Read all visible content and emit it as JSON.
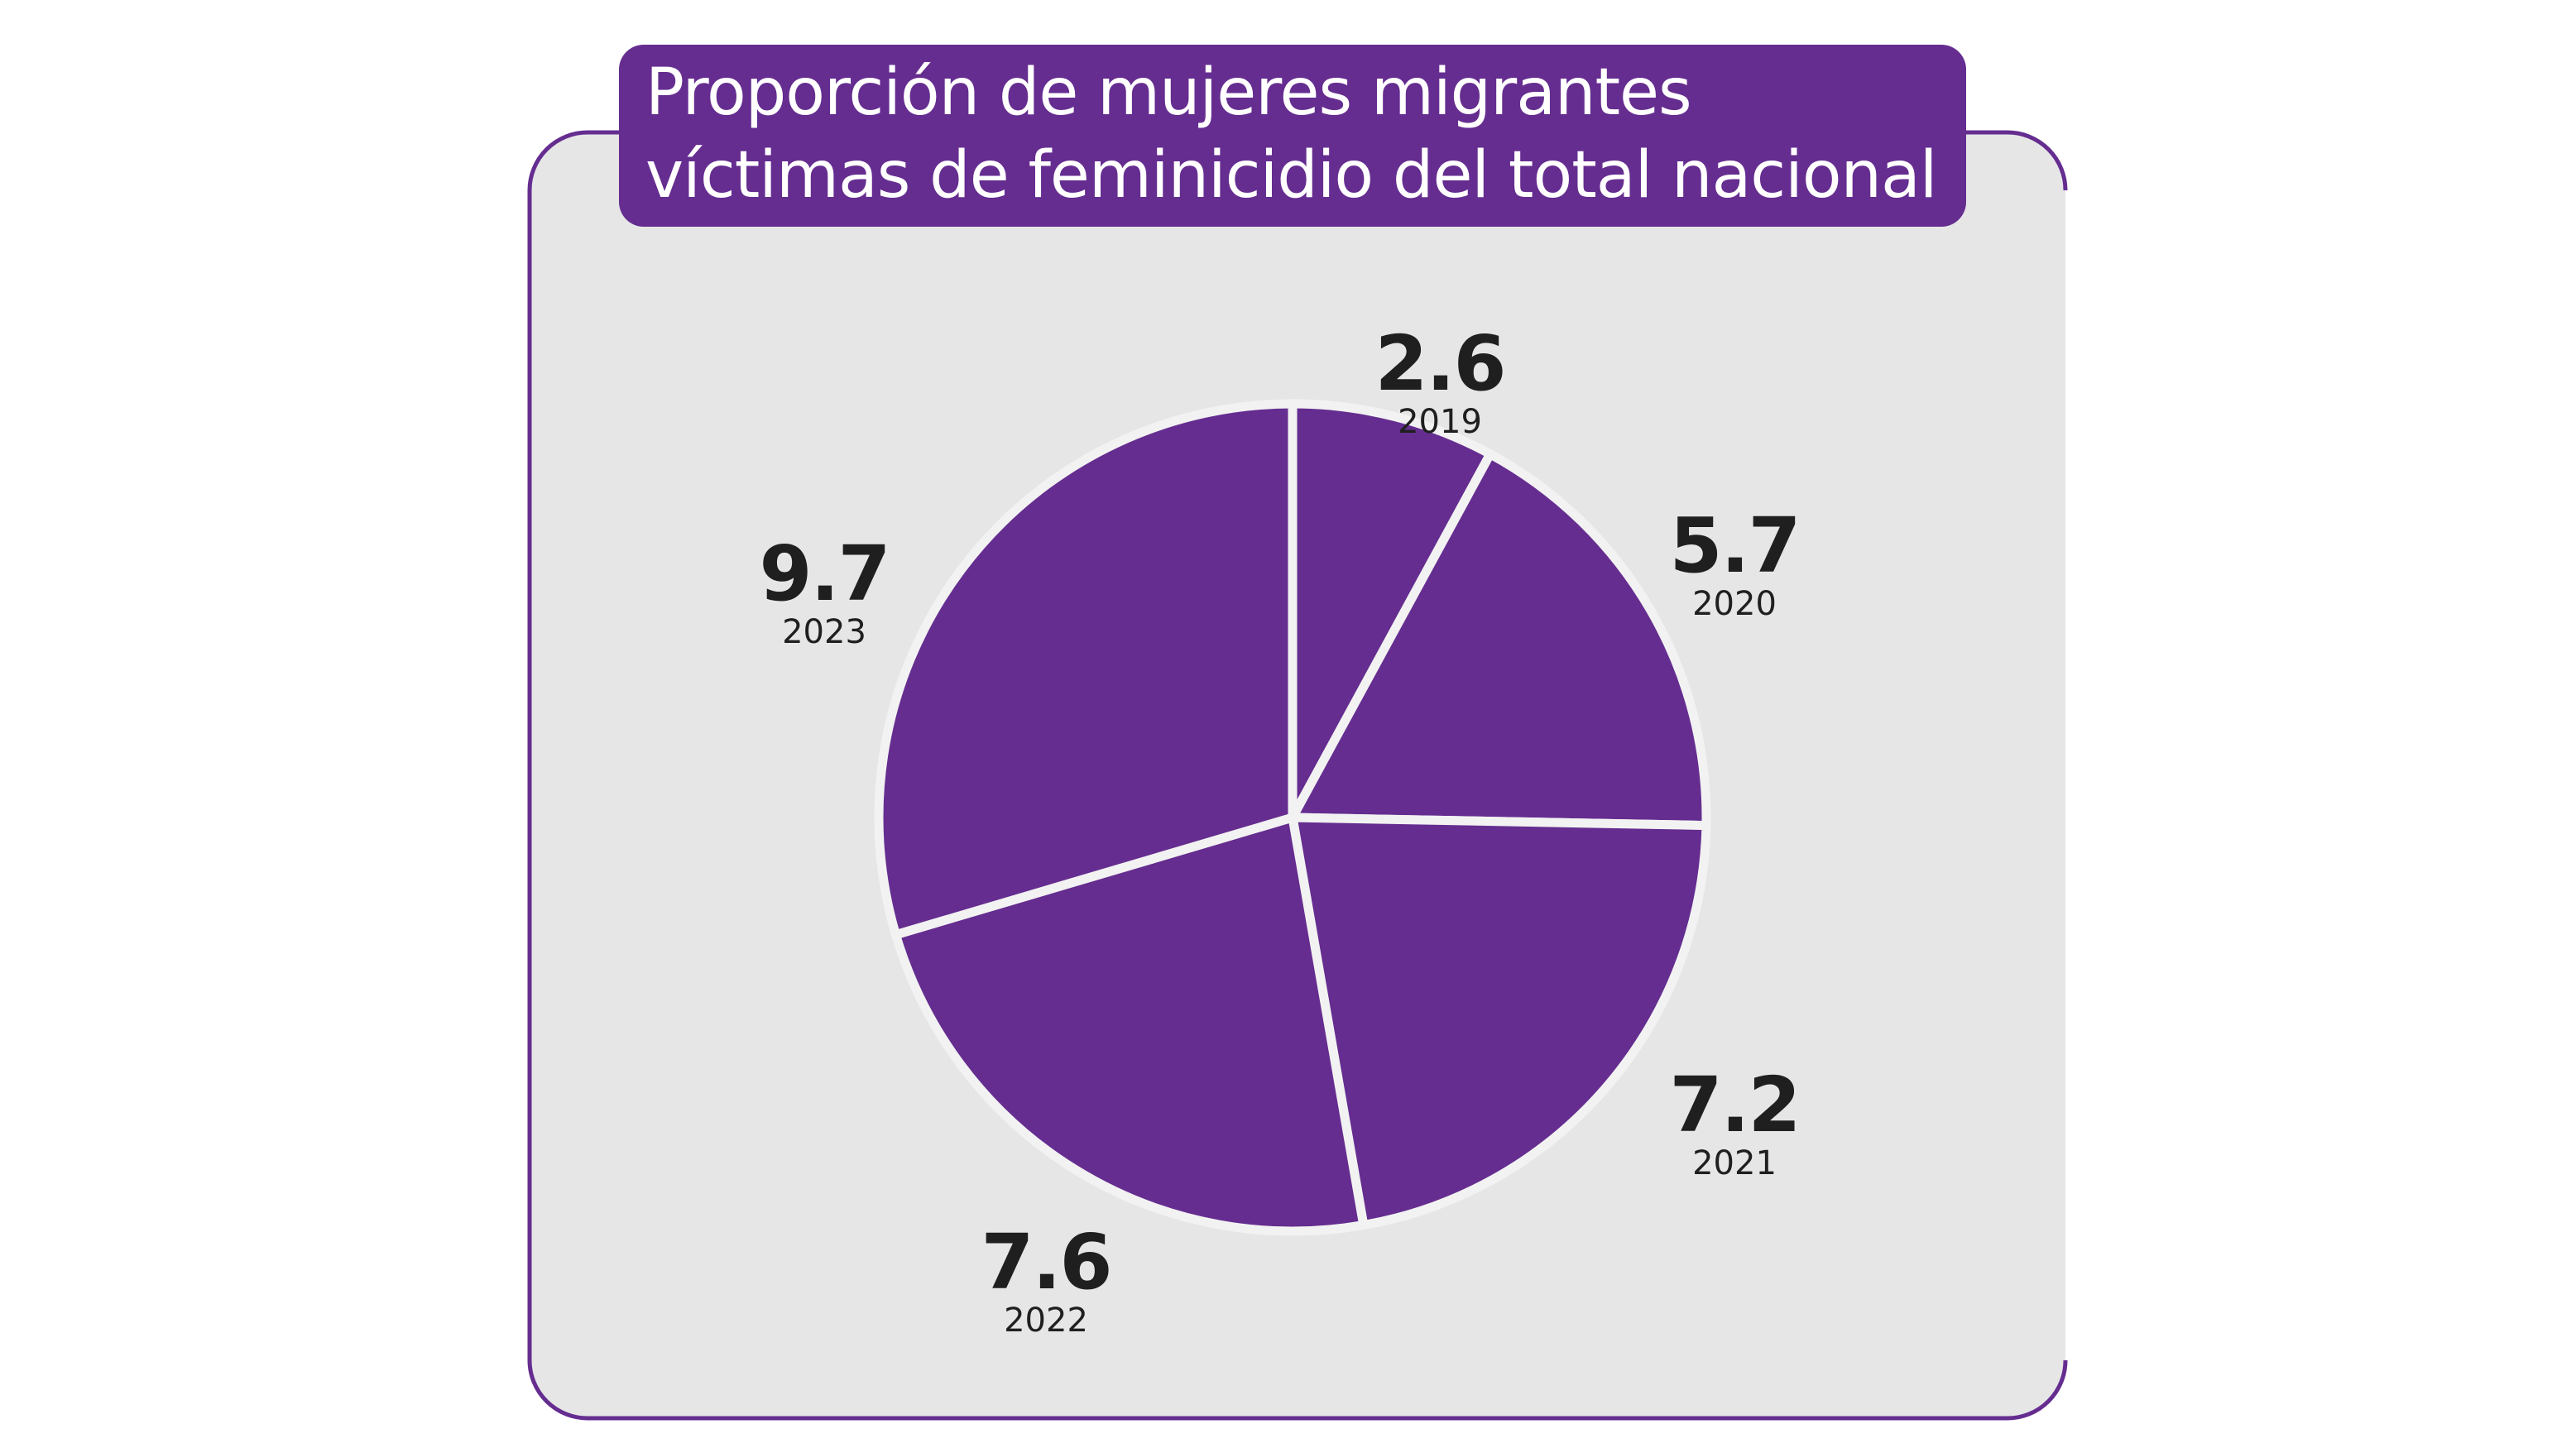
{
  "chart_data": {
    "type": "pie",
    "title": "Proporción de mujeres migrantes víctimas de feminicidio del total nacional",
    "title_lines": [
      "Proporción de mujeres migrantes",
      "víctimas de feminicidio del total nacional"
    ],
    "categories": [
      "2019",
      "2020",
      "2021",
      "2022",
      "2023"
    ],
    "values": [
      2.6,
      5.7,
      7.2,
      7.6,
      9.7
    ],
    "value_labels": [
      "2.6",
      "5.7",
      "7.2",
      "7.6",
      "9.7"
    ],
    "start": "top, clockwise",
    "legend": "none",
    "colors": {
      "slice": "#652d90",
      "background": "#e6e6e6",
      "border": "#652d90",
      "separator": "#f2f2f2",
      "text": "#1f1f1f"
    }
  }
}
